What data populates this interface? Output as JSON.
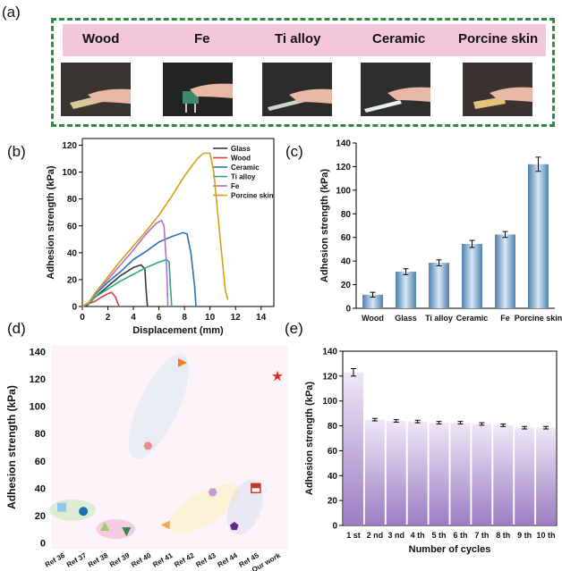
{
  "panel_labels": {
    "a": "(a)",
    "b": "(b)",
    "c": "(c)",
    "d": "(d)",
    "e": "(e)"
  },
  "panel_a": {
    "materials": [
      "Wood",
      "Fe",
      "Ti alloy",
      "Ceramic",
      "Porcine skin"
    ],
    "header_color": "#f4c6dc",
    "border_color": "#2e8b3f"
  },
  "chart_data": [
    {
      "panel": "b",
      "type": "line",
      "xlabel": "Displacement (mm)",
      "ylabel": "Adhesion strength (kPa)",
      "xlim": [
        0,
        15
      ],
      "ylim": [
        0,
        125
      ],
      "xticks": [
        0,
        2,
        4,
        6,
        8,
        10,
        12,
        14
      ],
      "yticks": [
        0,
        20,
        40,
        60,
        80,
        100,
        120
      ],
      "legend_position": "top-right",
      "series": [
        {
          "name": "Glass",
          "color": "#3a3a3a",
          "points": [
            [
              0,
              0
            ],
            [
              0.4,
              1
            ],
            [
              1,
              7
            ],
            [
              2,
              15
            ],
            [
              3,
              23
            ],
            [
              4,
              29
            ],
            [
              4.6,
              31
            ],
            [
              4.9,
              28
            ],
            [
              5,
              12
            ],
            [
              5.1,
              0
            ]
          ]
        },
        {
          "name": "Wood",
          "color": "#e0403a",
          "points": [
            [
              0,
              0
            ],
            [
              0.5,
              2
            ],
            [
              1,
              4
            ],
            [
              1.5,
              7
            ],
            [
              2,
              9.5
            ],
            [
              2.3,
              10.5
            ],
            [
              2.6,
              7
            ],
            [
              2.8,
              2
            ],
            [
              2.9,
              0
            ]
          ]
        },
        {
          "name": "Ceramic",
          "color": "#2f6fb3",
          "points": [
            [
              0,
              0
            ],
            [
              0.5,
              3
            ],
            [
              1,
              9
            ],
            [
              2,
              18
            ],
            [
              3,
              26
            ],
            [
              4,
              35
            ],
            [
              5,
              41
            ],
            [
              6,
              48
            ],
            [
              7,
              52
            ],
            [
              7.9,
              55
            ],
            [
              8.2,
              54
            ],
            [
              8.5,
              40
            ],
            [
              8.8,
              15
            ],
            [
              8.9,
              0
            ]
          ]
        },
        {
          "name": "Ti alloy",
          "color": "#2aa784",
          "points": [
            [
              0,
              0
            ],
            [
              0.5,
              2
            ],
            [
              1,
              7
            ],
            [
              2,
              13
            ],
            [
              3,
              19
            ],
            [
              4,
              24
            ],
            [
              5,
              29
            ],
            [
              6,
              33
            ],
            [
              6.6,
              35
            ],
            [
              6.8,
              33
            ],
            [
              6.9,
              15
            ],
            [
              7,
              0
            ]
          ]
        },
        {
          "name": "Fe",
          "color": "#b36cd6",
          "points": [
            [
              0,
              0
            ],
            [
              0.5,
              3
            ],
            [
              1,
              10
            ],
            [
              2,
              20
            ],
            [
              3,
              31
            ],
            [
              4,
              42
            ],
            [
              5,
              54
            ],
            [
              5.8,
              62
            ],
            [
              6.2,
              64
            ],
            [
              6.4,
              60
            ],
            [
              6.6,
              30
            ],
            [
              6.7,
              0
            ]
          ]
        },
        {
          "name": "Porcine skin",
          "color": "#d4a017",
          "points": [
            [
              0,
              0
            ],
            [
              0.5,
              3
            ],
            [
              1,
              10
            ],
            [
              2,
              22
            ],
            [
              3,
              34
            ],
            [
              4,
              45
            ],
            [
              5,
              56
            ],
            [
              6,
              68
            ],
            [
              7,
              82
            ],
            [
              8,
              97
            ],
            [
              9,
              110
            ],
            [
              9.5,
              114
            ],
            [
              10,
              114
            ],
            [
              10.3,
              100
            ],
            [
              10.8,
              50
            ],
            [
              11.2,
              12
            ],
            [
              11.4,
              5
            ]
          ]
        }
      ]
    },
    {
      "panel": "c",
      "type": "bar",
      "categories": [
        "Wood",
        "Glass",
        "Ti alloy",
        "Ceramic",
        "Fe",
        "Porcine skin"
      ],
      "values": [
        11.5,
        31,
        38.5,
        54.5,
        62.5,
        122
      ],
      "errors": [
        2,
        2.5,
        2.5,
        3,
        2.5,
        6
      ],
      "ylabel": "Adhesion strength (kPa)",
      "ylim": [
        0,
        140
      ],
      "yticks": [
        0,
        20,
        40,
        60,
        80,
        100,
        120,
        140
      ],
      "bar_color": "#7fa9cf"
    },
    {
      "panel": "d",
      "type": "scatter",
      "categories": [
        "Ref 36",
        "Ref 37",
        "Ref 38",
        "Ref 39",
        "Ref 40",
        "Ref 41",
        "Ref 42",
        "Ref 43",
        "Ref 44",
        "Ref 45",
        "Our work"
      ],
      "ylabel": "Adhesion strength (kPa)",
      "ylim": [
        -5,
        145
      ],
      "yticks": [
        0,
        20,
        40,
        60,
        80,
        100,
        120,
        140
      ],
      "points": [
        {
          "category": "Ref 36",
          "y": 26,
          "shape": "square",
          "color": "#8ec9e8"
        },
        {
          "category": "Ref 37",
          "y": 23,
          "shape": "circle",
          "color": "#1f6fb5"
        },
        {
          "category": "Ref 38",
          "y": 12,
          "shape": "triangle-up",
          "color": "#9ccc65"
        },
        {
          "category": "Ref 39",
          "y": 8,
          "shape": "triangle-down",
          "color": "#2e8b3f"
        },
        {
          "category": "Ref 40",
          "y": 71,
          "shape": "hexagon",
          "color": "#f08b8b"
        },
        {
          "category": "Ref 41",
          "y": 132,
          "shape": "triangle-right",
          "color": "#ef7d22"
        },
        {
          "category": "Ref 41",
          "y": 13,
          "shape": "triangle-left",
          "color": "#f4a84f"
        },
        {
          "category": "Ref 43",
          "y": 37,
          "shape": "hexagon",
          "color": "#c59bd6"
        },
        {
          "category": "Ref 44",
          "y": 12,
          "shape": "pentagon",
          "color": "#5b2a8c"
        },
        {
          "category": "Ref 45",
          "y": 40,
          "shape": "square-half",
          "color": "#c0392b"
        },
        {
          "category": "Our work",
          "y": 122,
          "shape": "star",
          "color": "#e02020"
        }
      ]
    },
    {
      "panel": "e",
      "type": "bar",
      "categories": [
        "1 st",
        "2 nd",
        "3 nd",
        "4 th",
        "5 th",
        "6 th",
        "7 th",
        "8 th",
        "9 th",
        "10 th"
      ],
      "values": [
        123,
        85,
        84,
        83.5,
        82.5,
        82.5,
        81.5,
        80.5,
        78.5,
        78.5
      ],
      "errors": [
        3,
        1,
        1,
        1,
        1,
        1,
        1,
        1,
        1,
        1
      ],
      "xlabel": "Number of cycles",
      "ylabel": "Adhesion strength (kPa)",
      "ylim": [
        0,
        140
      ],
      "yticks": [
        0,
        20,
        40,
        60,
        80,
        100,
        120,
        140
      ],
      "bar_color": "#a88bcc"
    }
  ]
}
